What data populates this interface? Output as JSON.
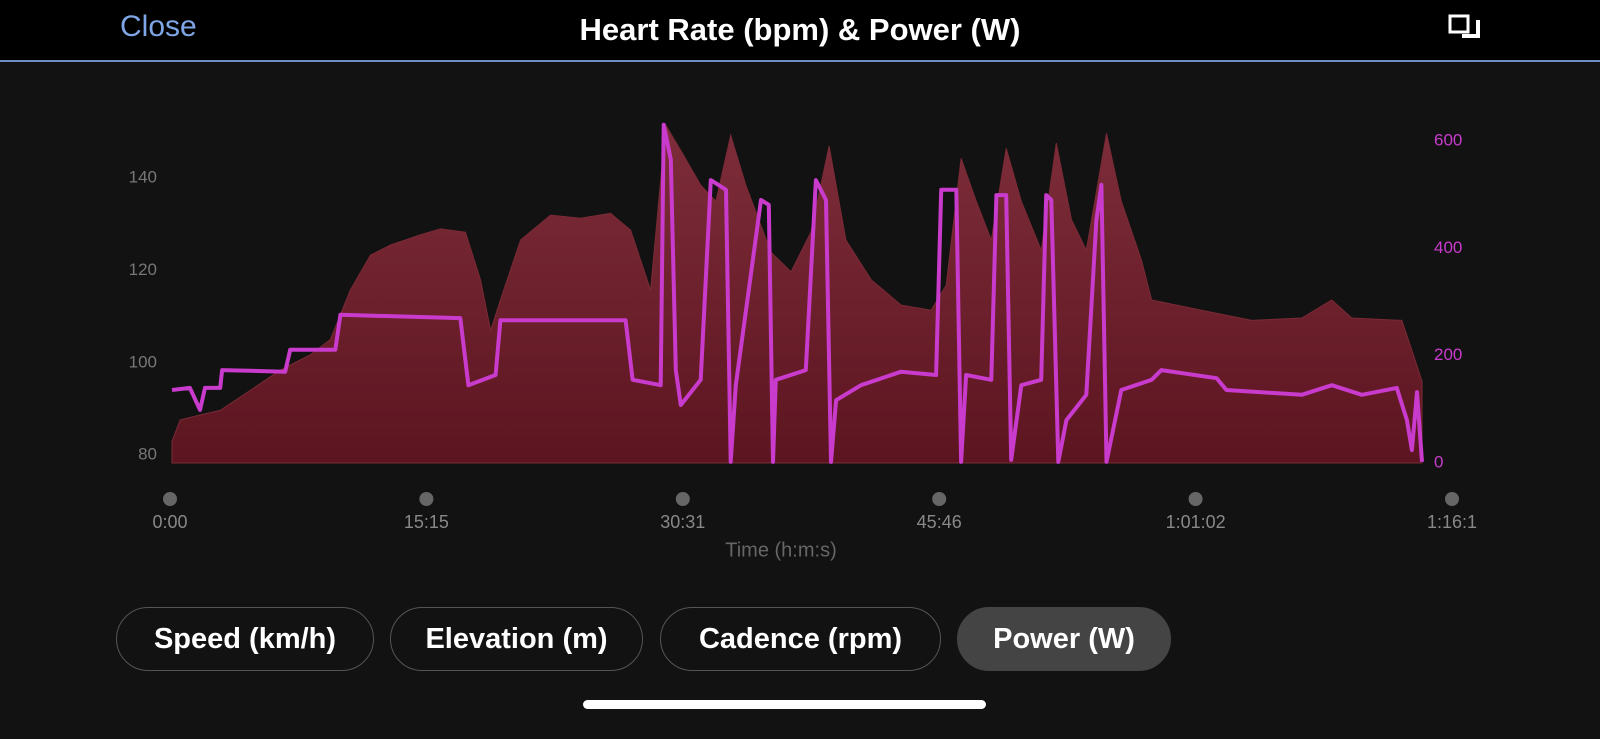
{
  "header": {
    "close": "Close",
    "title": "Heart Rate (bpm) & Power (W)"
  },
  "chart_data": {
    "type": "line",
    "xlabel": "Time (h:m:s)",
    "xlim": [
      0,
      4575
    ],
    "xticks": [
      {
        "value": 0,
        "label": "0:00"
      },
      {
        "value": 915,
        "label": "15:15"
      },
      {
        "value": 1830,
        "label": "30:31"
      },
      {
        "value": 2745,
        "label": "45:46"
      },
      {
        "value": 3660,
        "label": "1:01:02"
      },
      {
        "value": 4575,
        "label": "1:16:1"
      }
    ],
    "ylim": [
      78.3,
      152.6
    ],
    "yticks": [
      80,
      100,
      120,
      140
    ],
    "y2lim": [
      0,
      639
    ],
    "y2ticks": [
      0,
      200,
      400,
      600
    ],
    "series": [
      {
        "type": "area",
        "color": "#7a2a36",
        "x": [
          7,
          36,
          107,
          179,
          286,
          393,
          500,
          572,
          643,
          715,
          786,
          893,
          965,
          1054,
          1108,
          1144,
          1179,
          1251,
          1358,
          1465,
          1572,
          1644,
          1715,
          1769,
          1823,
          1894,
          1948,
          2001,
          2055,
          2144,
          2216,
          2287,
          2352,
          2412,
          2502,
          2609,
          2716,
          2770,
          2823,
          2877,
          2931,
          2984,
          3038,
          3109,
          3163,
          3217,
          3270,
          3342,
          3395,
          3467,
          3503,
          3681,
          3860,
          4039,
          4146,
          4217,
          4396,
          4432,
          4468
        ],
        "values": [
          83,
          87.6,
          88.7,
          89.7,
          94,
          98.4,
          101.7,
          105,
          115.7,
          123.3,
          125.5,
          127.7,
          129,
          128.3,
          118,
          107,
          113.6,
          126.6,
          132,
          131.3,
          132.4,
          128.7,
          115.7,
          151.5,
          146,
          138.5,
          135,
          149.3,
          138.5,
          124,
          119.7,
          128.3,
          147,
          126.6,
          118,
          112.5,
          111.4,
          116.8,
          144.3,
          135,
          126.6,
          146.5,
          135,
          124.4,
          147.6,
          131,
          124.4,
          149.7,
          135,
          122.2,
          113.6,
          111.4,
          109.2,
          109.7,
          113.6,
          109.7,
          109.2,
          102.7,
          96
        ]
      },
      {
        "type": "line",
        "axis": "y2",
        "color": "#c93bcc",
        "x": [
          7,
          71,
          107,
          125,
          179,
          186,
          411,
          429,
          590,
          608,
          1036,
          1065,
          1162,
          1179,
          1626,
          1651,
          1751,
          1762,
          1787,
          1805,
          1823,
          1894,
          1930,
          1984,
          2001,
          2019,
          2109,
          2137,
          2152,
          2162,
          2269,
          2305,
          2341,
          2359,
          2377,
          2466,
          2609,
          2734,
          2752,
          2806,
          2823,
          2841,
          2931,
          2949,
          2984,
          3002,
          3038,
          3109,
          3127,
          3145,
          3170,
          3199,
          3270,
          3306,
          3324,
          3342,
          3395,
          3503,
          3538,
          3735,
          3770,
          4039,
          4146,
          4253,
          4378,
          4414,
          4432,
          4450,
          4468
        ],
        "values": [
          136,
          140,
          99,
          140,
          140,
          173,
          170,
          211,
          211,
          276,
          270,
          145,
          164,
          266,
          266,
          155,
          145,
          630,
          565,
          173,
          108,
          155,
          527,
          509,
          2,
          145,
          490,
          481,
          2,
          155,
          173,
          527,
          490,
          2,
          117,
          145,
          170,
          164,
          509,
          509,
          2,
          164,
          155,
          499,
          499,
          6,
          145,
          155,
          499,
          490,
          2,
          80,
          127,
          453,
          518,
          2,
          136,
          155,
          173,
          158,
          136,
          127,
          145,
          127,
          140,
          80,
          24,
          132,
          2
        ]
      }
    ]
  },
  "buttons": [
    {
      "label": "Speed (km/h)",
      "selected": false
    },
    {
      "label": "Elevation (m)",
      "selected": false
    },
    {
      "label": "Cadence (rpm)",
      "selected": false
    },
    {
      "label": "Power (W)",
      "selected": true
    }
  ]
}
